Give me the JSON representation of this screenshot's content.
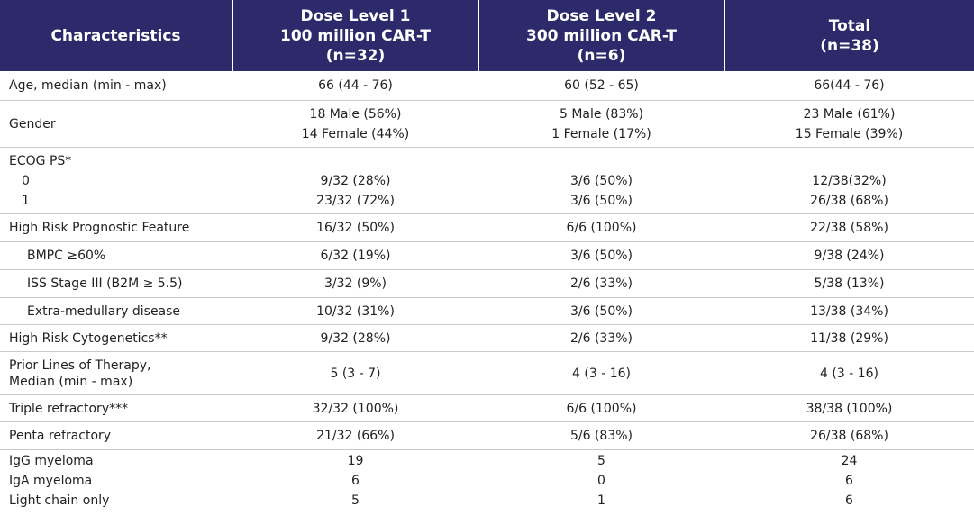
{
  "header": {
    "col0": "Characteristics",
    "col1": [
      "Dose Level 1",
      "100 million CAR-T",
      "(n=32)"
    ],
    "col2": [
      "Dose Level 2",
      "300 million CAR-T",
      "(n=6)"
    ],
    "col3": [
      "Total",
      "(n=38)"
    ]
  },
  "rows": {
    "age": {
      "label": "Age, median (min - max)",
      "v1": "66 (44 - 76)",
      "v2": "60 (52 - 65)",
      "v3": "66(44 - 76)"
    },
    "gender": {
      "label": "Gender",
      "v1": [
        "18 Male (56%)",
        "14 Female (44%)"
      ],
      "v2": [
        "5 Male (83%)",
        "1 Female (17%)"
      ],
      "v3": [
        "23 Male (61%)",
        "15 Female (39%)"
      ]
    },
    "ecog": {
      "label": "ECOG PS*",
      "sub": [
        "0",
        "1"
      ],
      "v1": [
        "9/32 (28%)",
        "23/32 (72%)"
      ],
      "v2": [
        "3/6 (50%)",
        "3/6 (50%)"
      ],
      "v3": [
        "12/38(32%)",
        "26/38 (68%)"
      ]
    },
    "high_risk": {
      "label": "High Risk Prognostic Feature",
      "v1": "16/32 (50%)",
      "v2": "6/6 (100%)",
      "v3": "22/38 (58%)"
    },
    "bmpc": {
      "label": "BMPC ≥60%",
      "v1": "6/32 (19%)",
      "v2": "3/6 (50%)",
      "v3": "9/38 (24%)"
    },
    "iss": {
      "label": "ISS Stage III (B2M ≥ 5.5)",
      "v1": "3/32 (9%)",
      "v2": "2/6 (33%)",
      "v3": "5/38 (13%)"
    },
    "extra": {
      "label": "Extra-medullary disease",
      "v1": "10/32 (31%)",
      "v2": "3/6 (50%)",
      "v3": "13/38 (34%)"
    },
    "cyto": {
      "label": "High Risk Cytogenetics**",
      "v1": "9/32 (28%)",
      "v2": "2/6 (33%)",
      "v3": "11/38 (29%)"
    },
    "prior": {
      "label": [
        "Prior Lines of Therapy,",
        "Median (min - max)"
      ],
      "v1": "5 (3 - 7)",
      "v2": "4 (3 - 16)",
      "v3": "4 (3 - 16)"
    },
    "triple": {
      "label": "Triple refractory***",
      "v1": "32/32 (100%)",
      "v2": "6/6 (100%)",
      "v3": "38/38 (100%)"
    },
    "penta": {
      "label": "Penta refractory",
      "v1": "21/32 (66%)",
      "v2": "5/6 (83%)",
      "v3": "26/38 (68%)"
    },
    "myeloma": {
      "labels": [
        "IgG myeloma",
        "IgA myeloma",
        "Light chain only"
      ],
      "v1": [
        "19",
        "6",
        "5"
      ],
      "v2": [
        "5",
        "0",
        "1"
      ],
      "v3": [
        "24",
        "6",
        "6"
      ]
    }
  },
  "colors": {
    "header_bg": "#2d2a6b",
    "header_text": "#ffffff",
    "row_divider": "#c9c9c9"
  }
}
